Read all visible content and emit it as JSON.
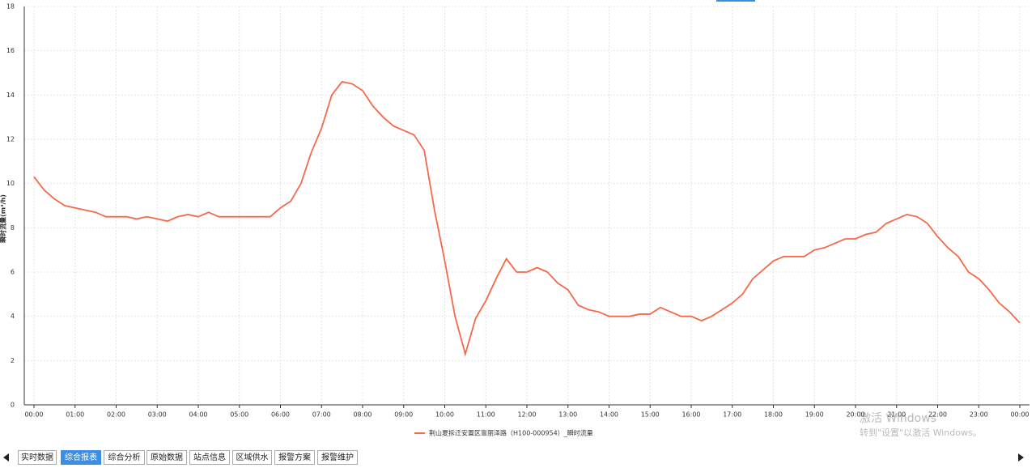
{
  "chart_data": {
    "type": "line",
    "y_label": "瞬时流量(m³/h)",
    "categories": [
      "00:00",
      null,
      null,
      null,
      "01:00",
      null,
      null,
      null,
      "02:00",
      null,
      null,
      null,
      "03:00",
      null,
      null,
      null,
      "04:00",
      null,
      null,
      null,
      "05:00",
      null,
      null,
      null,
      "06:00",
      null,
      null,
      null,
      "07:00",
      null,
      null,
      null,
      "08:00",
      null,
      null,
      null,
      "09:00",
      null,
      null,
      null,
      "10:00",
      null,
      null,
      null,
      "11:00",
      null,
      null,
      null,
      "12:00",
      null,
      null,
      null,
      "13:00",
      null,
      null,
      null,
      "14:00",
      null,
      null,
      null,
      "15:00",
      null,
      null,
      null,
      "16:00",
      null,
      null,
      null,
      "17:00",
      null,
      null,
      null,
      "18:00",
      null,
      null,
      null,
      "19:00",
      null,
      null,
      null,
      "20:00",
      null,
      null,
      null,
      "21:00",
      null,
      null,
      null,
      "22:00",
      null,
      null,
      null,
      "23:00",
      null,
      null,
      null,
      "00:00"
    ],
    "series": [
      {
        "name": "荆山夏拆迁安置区靠丽泽路（H100-000954）_瞬时流量",
        "color": "#f4694a",
        "values": [
          10.3,
          9.7,
          9.3,
          9.0,
          8.9,
          8.8,
          8.7,
          8.5,
          8.5,
          8.5,
          8.4,
          8.5,
          8.4,
          8.3,
          8.5,
          8.6,
          8.5,
          8.7,
          8.5,
          8.5,
          8.5,
          8.5,
          8.5,
          8.5,
          8.9,
          9.2,
          10.0,
          11.4,
          12.5,
          14.0,
          14.6,
          14.5,
          14.2,
          13.5,
          13.0,
          12.6,
          12.4,
          12.2,
          11.5,
          8.8,
          6.5,
          4.0,
          2.3,
          3.9,
          4.7,
          5.7,
          6.6,
          6.0,
          6.0,
          6.2,
          6.0,
          5.5,
          5.2,
          4.5,
          4.3,
          4.2,
          4.0,
          4.0,
          4.0,
          4.1,
          4.1,
          4.4,
          4.2,
          4.0,
          4.0,
          3.8,
          4.0,
          4.3,
          4.6,
          5.0,
          5.7,
          6.1,
          6.5,
          6.7,
          6.7,
          6.7,
          7.0,
          7.1,
          7.3,
          7.5,
          7.5,
          7.7,
          7.8,
          8.2,
          8.4,
          8.6,
          8.5,
          8.2,
          7.6,
          7.1,
          6.7,
          6.0,
          5.7,
          5.2,
          4.6,
          4.2,
          3.7
        ]
      }
    ],
    "ylim": [
      0,
      18
    ],
    "yticks": [
      0,
      2,
      4,
      6,
      8,
      10,
      12,
      14,
      16,
      18
    ],
    "grid": true
  },
  "watermark": {
    "title": "激活 Windows",
    "subtitle": "转到\"设置\"以激活 Windows。"
  },
  "tabs": {
    "items": [
      "实时数据",
      "综合报表",
      "综合分析",
      "原始数据",
      "站点信息",
      "区域供水",
      "报警方案",
      "报警维护"
    ],
    "active": 1
  }
}
